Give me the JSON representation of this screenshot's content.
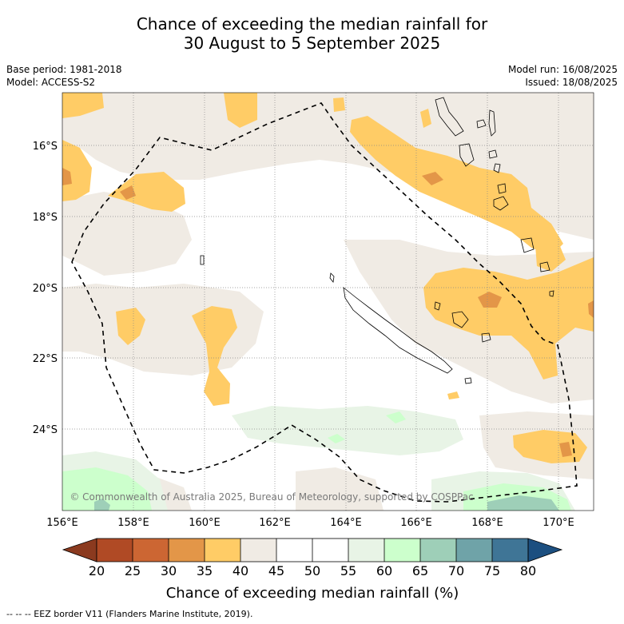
{
  "title_line1": "Chance of exceeding the median rainfall for",
  "title_line2": "30 August to 5 September 2025",
  "base_period": "Base period: 1981-2018",
  "model": "Model: ACCESS-S2",
  "model_run": "Model run: 16/08/2025",
  "issued": "Issued: 18/08/2025",
  "copyright": "© Commonwealth of Australia 2025, Bureau of Meteorology, supported by COSPPac",
  "lat_labels": [
    "16°S",
    "18°S",
    "20°S",
    "22°S",
    "24°S"
  ],
  "lon_labels": [
    "156°E",
    "158°E",
    "160°E",
    "162°E",
    "164°E",
    "166°E",
    "168°E",
    "170°E"
  ],
  "colorbar": {
    "title": "Chance of exceeding median rainfall (%)",
    "ticks": [
      "20",
      "25",
      "30",
      "35",
      "40",
      "45",
      "50",
      "55",
      "60",
      "65",
      "70",
      "75",
      "80"
    ],
    "bins": [
      {
        "range": "<20",
        "color": "#8b3a1f"
      },
      {
        "range": "20-25",
        "color": "#b04a25"
      },
      {
        "range": "25-30",
        "color": "#cc6633"
      },
      {
        "range": "30-35",
        "color": "#e39648"
      },
      {
        "range": "35-40",
        "color": "#ffcc66"
      },
      {
        "range": "40-45",
        "color": "#f0ebe4"
      },
      {
        "range": "45-50",
        "color": "#ffffff"
      },
      {
        "range": "50-55",
        "color": "#ffffff"
      },
      {
        "range": "55-60",
        "color": "#e8f4e6"
      },
      {
        "range": "60-65",
        "color": "#ccffcc"
      },
      {
        "range": "65-70",
        "color": "#9ecfb8"
      },
      {
        "range": "70-75",
        "color": "#6fa3a8"
      },
      {
        "range": "75-80",
        "color": "#3f7596"
      },
      {
        "range": ">80",
        "color": "#1c4f80"
      }
    ]
  },
  "legend_note": "--  --  -- EEZ border V11 (Flanders Marine Institute, 2019).",
  "map_extent": {
    "lon_min": 156,
    "lon_max": 171,
    "lat_min": -26.3,
    "lat_max": -14.6
  }
}
